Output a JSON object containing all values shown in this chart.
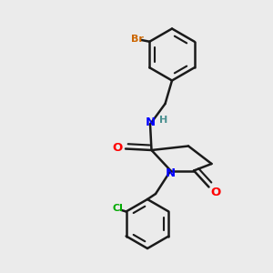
{
  "background_color": "#ebebeb",
  "bond_color": "#1a1a1a",
  "N_color": "#0000ff",
  "O_color": "#ff0000",
  "Br_color": "#cc6600",
  "Cl_color": "#00aa00",
  "H_color": "#4a9090",
  "bond_width": 1.8,
  "figsize": [
    3.0,
    3.0
  ],
  "dpi": 100,
  "xlim": [
    0.0,
    10.0
  ],
  "ylim": [
    0.0,
    10.0
  ]
}
